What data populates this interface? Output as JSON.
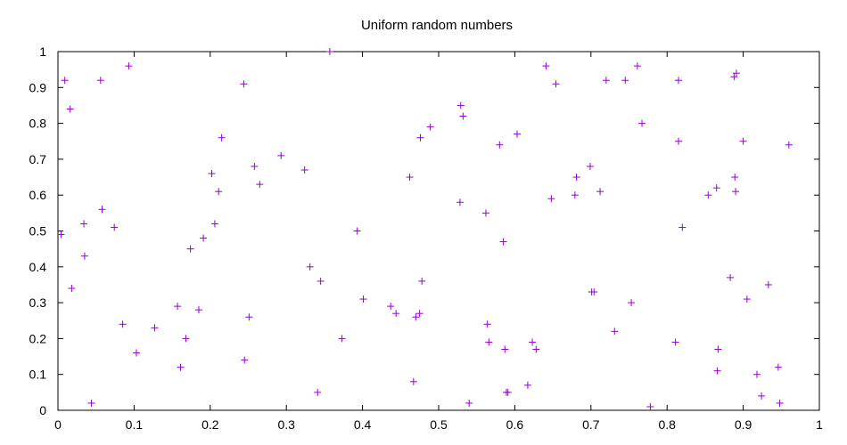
{
  "chart_data": {
    "type": "scatter",
    "title": "Uniform random numbers",
    "xlabel": "",
    "ylabel": "",
    "xlim": [
      0,
      1
    ],
    "ylim": [
      0,
      1
    ],
    "grid": false,
    "marker": "plus",
    "color": "#9400d3",
    "xticks": [
      "0",
      "0.1",
      "0.2",
      "0.3",
      "0.4",
      "0.5",
      "0.6",
      "0.7",
      "0.8",
      "0.9",
      "1"
    ],
    "yticks": [
      "0",
      "0.1",
      "0.2",
      "0.3",
      "0.4",
      "0.5",
      "0.6",
      "0.7",
      "0.8",
      "0.9",
      "1"
    ],
    "series": [
      {
        "points": [
          [
            0.004,
            0.49
          ],
          [
            0.009,
            0.92
          ],
          [
            0.016,
            0.84
          ],
          [
            0.018,
            0.34
          ],
          [
            0.034,
            0.52
          ],
          [
            0.035,
            0.43
          ],
          [
            0.044,
            0.02
          ],
          [
            0.056,
            0.92
          ],
          [
            0.058,
            0.56
          ],
          [
            0.074,
            0.51
          ],
          [
            0.085,
            0.24
          ],
          [
            0.093,
            0.96
          ],
          [
            0.103,
            0.16
          ],
          [
            0.127,
            0.23
          ],
          [
            0.157,
            0.29
          ],
          [
            0.161,
            0.12
          ],
          [
            0.168,
            0.2
          ],
          [
            0.174,
            0.45
          ],
          [
            0.185,
            0.28
          ],
          [
            0.191,
            0.48
          ],
          [
            0.202,
            0.66
          ],
          [
            0.206,
            0.52
          ],
          [
            0.211,
            0.61
          ],
          [
            0.215,
            0.76
          ],
          [
            0.244,
            0.91
          ],
          [
            0.245,
            0.14
          ],
          [
            0.251,
            0.26
          ],
          [
            0.258,
            0.68
          ],
          [
            0.265,
            0.63
          ],
          [
            0.293,
            0.71
          ],
          [
            0.324,
            0.67
          ],
          [
            0.331,
            0.4
          ],
          [
            0.341,
            0.05
          ],
          [
            0.345,
            0.36
          ],
          [
            0.357,
            1.0
          ],
          [
            0.373,
            0.2
          ],
          [
            0.393,
            0.5
          ],
          [
            0.401,
            0.31
          ],
          [
            0.437,
            0.29
          ],
          [
            0.444,
            0.27
          ],
          [
            0.462,
            0.65
          ],
          [
            0.467,
            0.08
          ],
          [
            0.47,
            0.26
          ],
          [
            0.475,
            0.27
          ],
          [
            0.476,
            0.76
          ],
          [
            0.478,
            0.36
          ],
          [
            0.489,
            0.79
          ],
          [
            0.528,
            0.58
          ],
          [
            0.529,
            0.85
          ],
          [
            0.532,
            0.82
          ],
          [
            0.54,
            0.02
          ],
          [
            0.562,
            0.55
          ],
          [
            0.564,
            0.24
          ],
          [
            0.566,
            0.19
          ],
          [
            0.58,
            0.74
          ],
          [
            0.585,
            0.47
          ],
          [
            0.587,
            0.17
          ],
          [
            0.589,
            0.05
          ],
          [
            0.591,
            0.05
          ],
          [
            0.603,
            0.77
          ],
          [
            0.617,
            0.07
          ],
          [
            0.623,
            0.19
          ],
          [
            0.628,
            0.17
          ],
          [
            0.641,
            0.96
          ],
          [
            0.648,
            0.59
          ],
          [
            0.654,
            0.91
          ],
          [
            0.679,
            0.6
          ],
          [
            0.681,
            0.65
          ],
          [
            0.699,
            0.68
          ],
          [
            0.701,
            0.33
          ],
          [
            0.704,
            0.33
          ],
          [
            0.712,
            0.61
          ],
          [
            0.72,
            0.92
          ],
          [
            0.731,
            0.22
          ],
          [
            0.745,
            0.92
          ],
          [
            0.753,
            0.3
          ],
          [
            0.761,
            0.96
          ],
          [
            0.767,
            0.8
          ],
          [
            0.778,
            0.01
          ],
          [
            0.811,
            0.19
          ],
          [
            0.815,
            0.92
          ],
          [
            0.815,
            0.75
          ],
          [
            0.82,
            0.51
          ],
          [
            0.854,
            0.6
          ],
          [
            0.865,
            0.62
          ],
          [
            0.866,
            0.11
          ],
          [
            0.867,
            0.17
          ],
          [
            0.883,
            0.37
          ],
          [
            0.888,
            0.93
          ],
          [
            0.889,
            0.65
          ],
          [
            0.89,
            0.61
          ],
          [
            0.891,
            0.94
          ],
          [
            0.9,
            0.75
          ],
          [
            0.905,
            0.31
          ],
          [
            0.918,
            0.1
          ],
          [
            0.924,
            0.04
          ],
          [
            0.933,
            0.35
          ],
          [
            0.946,
            0.12
          ],
          [
            0.948,
            0.02
          ],
          [
            0.96,
            0.74
          ]
        ]
      }
    ]
  }
}
